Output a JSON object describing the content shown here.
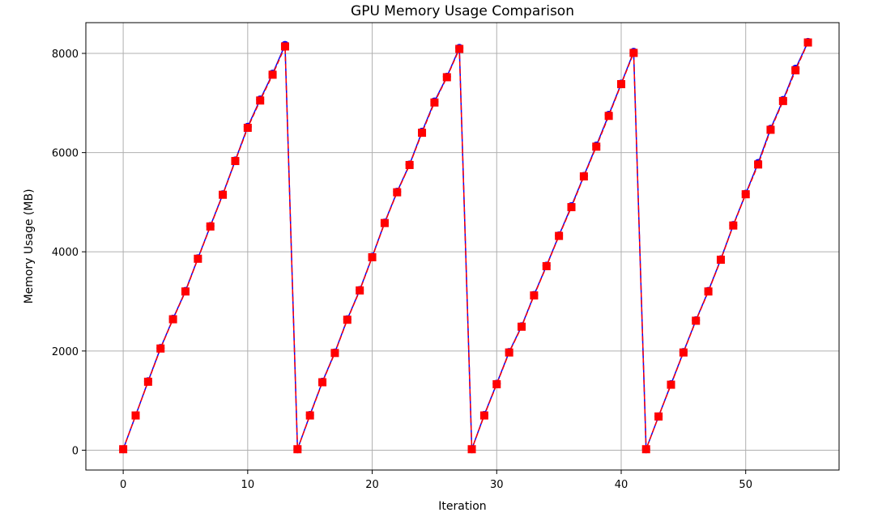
{
  "chart_data": {
    "type": "line",
    "title": "GPU Memory Usage Comparison",
    "xlabel": "Iteration",
    "ylabel": "Memory Usage (MB)",
    "xlim": [
      -3,
      57.5
    ],
    "ylim": [
      -400,
      8620
    ],
    "xticks": [
      0,
      10,
      20,
      30,
      40,
      50
    ],
    "yticks": [
      0,
      2000,
      4000,
      6000,
      8000
    ],
    "grid": true,
    "x": [
      0,
      1,
      2,
      3,
      4,
      5,
      6,
      7,
      8,
      9,
      10,
      11,
      12,
      13,
      14,
      15,
      16,
      17,
      18,
      19,
      20,
      21,
      22,
      23,
      24,
      25,
      26,
      27,
      28,
      29,
      30,
      31,
      32,
      33,
      34,
      35,
      36,
      37,
      38,
      39,
      40,
      41,
      42,
      43,
      44,
      45,
      46,
      47,
      48,
      49,
      50,
      51,
      52,
      53,
      54,
      55
    ],
    "series": [
      {
        "color": "#0000ff",
        "marker": "circle",
        "line_style": "solid",
        "values": [
          20,
          700,
          1390,
          2060,
          2650,
          3210,
          3870,
          4520,
          5160,
          5840,
          6520,
          7070,
          7590,
          8170,
          20,
          710,
          1380,
          1970,
          2640,
          3230,
          3900,
          4590,
          5210,
          5760,
          6420,
          7030,
          7530,
          8110,
          20,
          710,
          1340,
          1980,
          2500,
          3130,
          3720,
          4330,
          4920,
          5530,
          6140,
          6760,
          7390,
          8030,
          20,
          680,
          1330,
          1980,
          2620,
          3210,
          3850,
          4540,
          5170,
          5790,
          6480,
          7060,
          7690,
          8230
        ]
      },
      {
        "color": "#ff0000",
        "marker": "square",
        "line_style": "dashed",
        "values": [
          20,
          700,
          1380,
          2050,
          2640,
          3200,
          3860,
          4510,
          5150,
          5830,
          6500,
          7050,
          7570,
          8140,
          20,
          700,
          1370,
          1960,
          2630,
          3220,
          3890,
          4580,
          5200,
          5750,
          6400,
          7010,
          7520,
          8090,
          20,
          700,
          1330,
          1970,
          2490,
          3120,
          3710,
          4320,
          4900,
          5520,
          6120,
          6740,
          7380,
          8010,
          20,
          680,
          1320,
          1970,
          2610,
          3200,
          3840,
          4530,
          5160,
          5760,
          6460,
          7040,
          7660,
          8220
        ]
      }
    ]
  }
}
